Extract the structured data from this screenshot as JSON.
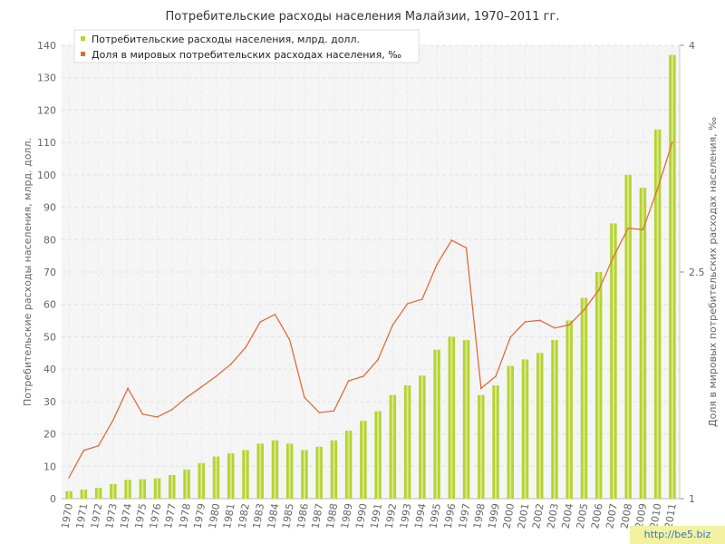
{
  "chart_data": {
    "type": "bar",
    "title": "Потребительские расходы населения Малайзии, 1970–2011 гг.",
    "ylabel": "Потребительские расходы населения, млрд. долл.",
    "y2label": "Доля в мировых потребительских расходах населения, ‰",
    "ylim": [
      0,
      140
    ],
    "y2lim": [
      1,
      4
    ],
    "yticks": [
      0,
      10,
      20,
      30,
      40,
      50,
      60,
      70,
      80,
      90,
      100,
      110,
      120,
      130,
      140
    ],
    "y2ticks": [
      "1",
      "2.5",
      "4"
    ],
    "grid": true,
    "legend_position": "top-left",
    "categories": [
      "1970",
      "1971",
      "1972",
      "1973",
      "1974",
      "1975",
      "1976",
      "1977",
      "1978",
      "1979",
      "1980",
      "1981",
      "1982",
      "1983",
      "1984",
      "1985",
      "1986",
      "1987",
      "1988",
      "1989",
      "1990",
      "1991",
      "1992",
      "1993",
      "1994",
      "1995",
      "1996",
      "1997",
      "1998",
      "1999",
      "2000",
      "2001",
      "2002",
      "2003",
      "2004",
      "2005",
      "2006",
      "2007",
      "2008",
      "2009",
      "2010",
      "2011"
    ],
    "series": [
      {
        "name": "Потребительские расходы населения, млрд. долл.",
        "type": "bar",
        "axis": "left",
        "color": "#b5d332",
        "values": [
          2.3,
          2.8,
          3.3,
          4.5,
          5.8,
          6.0,
          6.3,
          7.3,
          9.0,
          11.0,
          13.0,
          14.0,
          15.0,
          17.0,
          18.0,
          17.0,
          15.0,
          16.0,
          18.0,
          21.0,
          24.0,
          27.0,
          32.0,
          35.0,
          38.0,
          46.0,
          50.0,
          49.0,
          32.0,
          35.0,
          41.0,
          43.0,
          45.0,
          49.0,
          55.0,
          62.0,
          70.0,
          85.0,
          100.0,
          96.0,
          114.0,
          137.0
        ]
      },
      {
        "name": "Доля в мировых потребительских расходах населения, ‰",
        "type": "line",
        "axis": "right",
        "color": "#e06c3c",
        "values": [
          1.14,
          1.32,
          1.35,
          1.52,
          1.73,
          1.56,
          1.54,
          1.59,
          1.67,
          1.74,
          1.81,
          1.89,
          2.0,
          2.17,
          2.22,
          2.05,
          1.67,
          1.57,
          1.58,
          1.78,
          1.81,
          1.92,
          2.15,
          2.29,
          2.32,
          2.55,
          2.71,
          2.66,
          1.73,
          1.81,
          2.07,
          2.17,
          2.18,
          2.13,
          2.15,
          2.25,
          2.38,
          2.6,
          2.79,
          2.78,
          3.05,
          3.36
        ]
      }
    ]
  }
}
